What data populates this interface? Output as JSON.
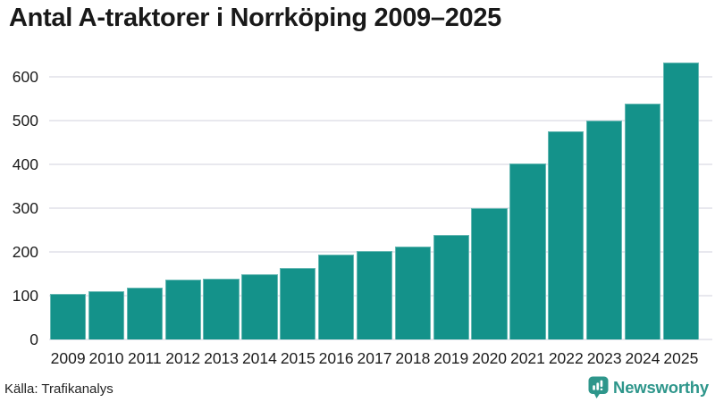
{
  "header": {
    "title": "Antal A-traktorer i Norrköping 2009–2025"
  },
  "footer": {
    "source_label": "Källa: Trafikanalys",
    "brand": "Newsworthy",
    "brand_icon": "bar-chart-speech-bubble-icon"
  },
  "colors": {
    "bar": "#14928a",
    "grid": "#e8e8ee",
    "tick_text": "#1c1c1c",
    "title_text": "#191919",
    "brand": "#2e968b",
    "background": "#ffffff"
  },
  "chart_data": {
    "type": "bar",
    "title": "Antal A-traktorer i Norrköping 2009–2025",
    "source": "Källa: Trafikanalys",
    "categories": [
      "2009",
      "2010",
      "2011",
      "2012",
      "2013",
      "2014",
      "2015",
      "2016",
      "2017",
      "2018",
      "2019",
      "2020",
      "2021",
      "2022",
      "2023",
      "2024",
      "2025"
    ],
    "values": [
      105,
      111,
      118,
      137,
      140,
      150,
      164,
      195,
      202,
      213,
      239,
      300,
      402,
      476,
      500,
      540,
      633
    ],
    "xlabel": "",
    "ylabel": "",
    "ylim": [
      0,
      650
    ],
    "yticks": [
      0,
      100,
      200,
      300,
      400,
      500,
      600
    ],
    "grid": true,
    "legend": false,
    "bar_color": "#14928a"
  }
}
